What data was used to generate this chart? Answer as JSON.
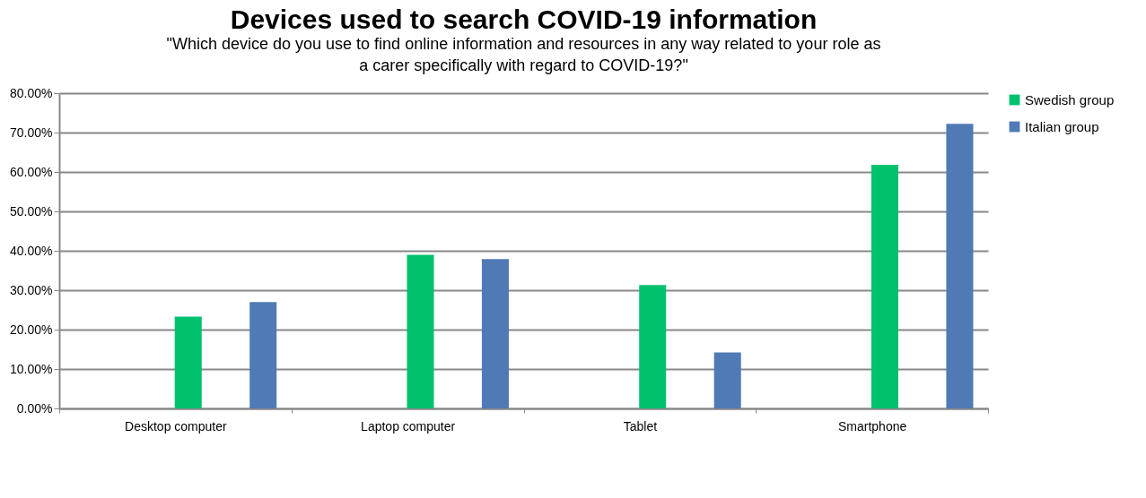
{
  "chart_data": {
    "type": "bar",
    "title": "Devices used to search COVID-19 information",
    "subtitle": "\"Which device do you use to find online information and resources in any way related to your role as a carer specifically with regard to COVID-19?\"",
    "categories": [
      "Desktop computer",
      "Laptop computer",
      "Tablet",
      "Smartphone"
    ],
    "series": [
      {
        "name": "Swedish group",
        "color": "#00c16e",
        "values": [
          23.3,
          39.0,
          31.3,
          61.8
        ]
      },
      {
        "name": "Italian group",
        "color": "#4f7ab6",
        "values": [
          27.0,
          37.9,
          14.2,
          72.2
        ]
      }
    ],
    "ylim": [
      0,
      80
    ],
    "yticks": [
      {
        "value": 0,
        "label": "0.00%"
      },
      {
        "value": 10,
        "label": "10.00%"
      },
      {
        "value": 20,
        "label": "20.00%"
      },
      {
        "value": 30,
        "label": "30.00%"
      },
      {
        "value": 40,
        "label": "40.00%"
      },
      {
        "value": 50,
        "label": "50.00%"
      },
      {
        "value": 60,
        "label": "60.00%"
      },
      {
        "value": 70,
        "label": "70.00%"
      },
      {
        "value": 80,
        "label": "80.00%"
      }
    ],
    "grid": "y",
    "legend": "right"
  }
}
